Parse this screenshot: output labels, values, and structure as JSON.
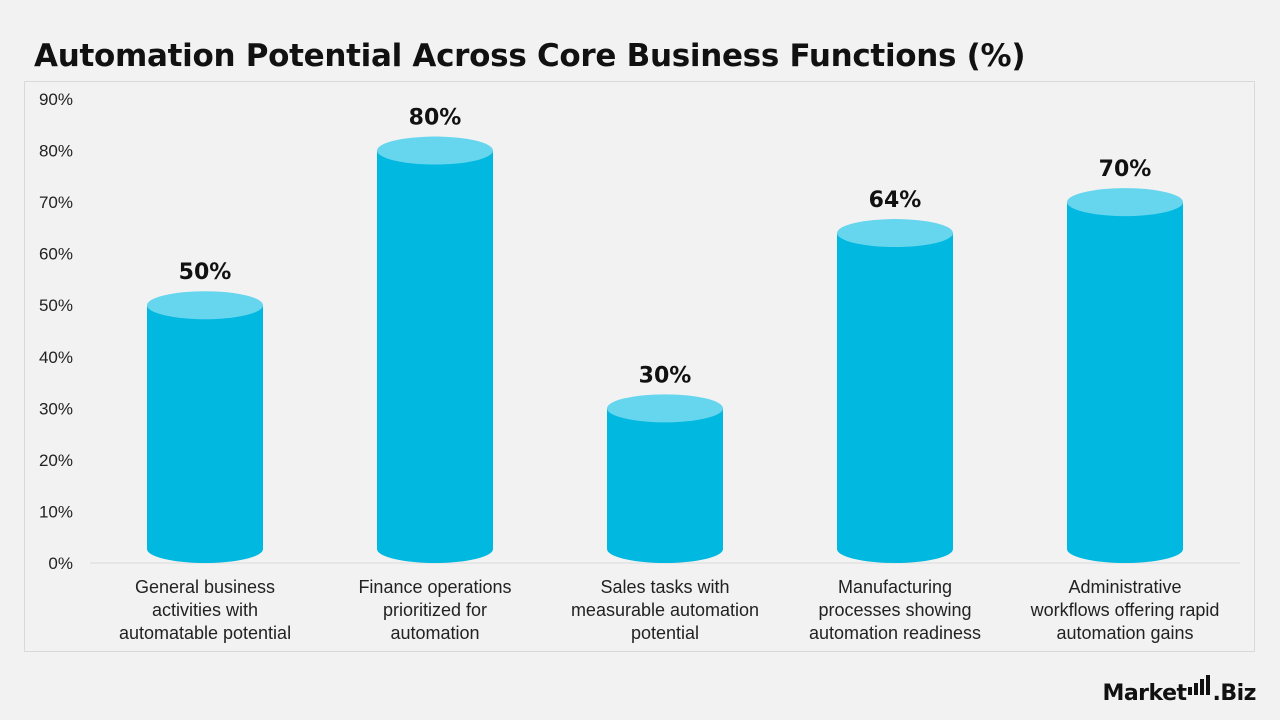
{
  "title": "Automation Potential Across Core Business Functions (%)",
  "chart_data": {
    "type": "bar",
    "title": "Automation Potential Across Core Business Functions (%)",
    "categories": [
      [
        "General business",
        "activities with",
        "automatable potential"
      ],
      [
        "Finance operations",
        "prioritized for",
        "automation"
      ],
      [
        "Sales tasks with",
        "measurable automation",
        "potential"
      ],
      [
        "Manufacturing",
        "processes showing",
        "automation readiness"
      ],
      [
        "Administrative",
        "workflows offering rapid",
        "automation gains"
      ]
    ],
    "values": [
      50,
      80,
      30,
      64,
      70
    ],
    "data_labels": [
      "50%",
      "80%",
      "30%",
      "64%",
      "70%"
    ],
    "ylim": [
      0,
      90
    ],
    "yticks": [
      0,
      10,
      20,
      30,
      40,
      50,
      60,
      70,
      80,
      90
    ],
    "ytick_labels": [
      "0%",
      "10%",
      "20%",
      "30%",
      "40%",
      "50%",
      "60%",
      "70%",
      "80%",
      "90%"
    ],
    "xlabel": "",
    "ylabel": "",
    "grid": false,
    "legend": "none",
    "bar_style": "cylinder",
    "colors": {
      "bar_body": "#00b8e0",
      "bar_top": "#66d5ee",
      "axis": "#d9d9d9"
    }
  },
  "brand": {
    "left": "Market",
    "right": "Biz",
    "icon": "bar-chart-icon"
  }
}
